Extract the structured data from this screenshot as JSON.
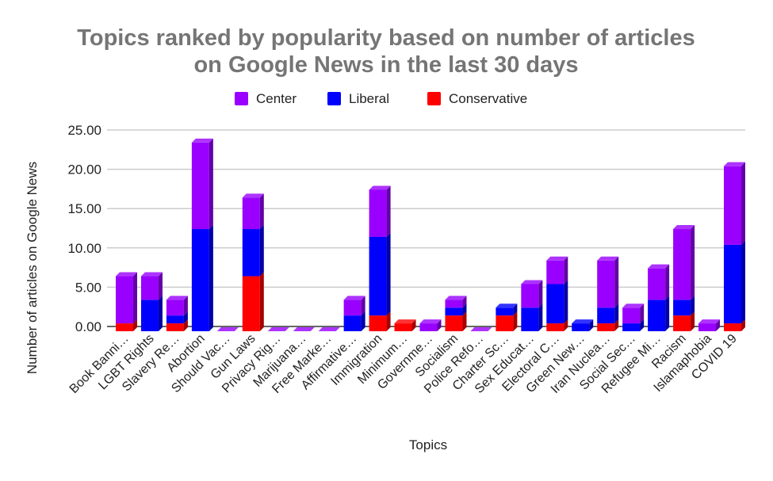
{
  "chart_data": {
    "type": "bar",
    "stacked": true,
    "style": "3d",
    "title": "Topics ranked by popularity based on number of articles on Google News in the last 30 days",
    "title_lines": [
      "Topics ranked by popularity based on number of articles",
      "on Google News in the last 30 days"
    ],
    "xlabel": "Topics",
    "ylabel": "Number of articles on Google News",
    "ylim": [
      0,
      25
    ],
    "yticks": [
      "0.00",
      "5.00",
      "10.00",
      "15.00",
      "20.00",
      "25.00"
    ],
    "grid": true,
    "legend_position": "top",
    "categories": [
      "Book Banni…",
      "LGBT Rights",
      "Slavery Re…",
      "Abortion",
      "Should Vac…",
      "Gun Laws",
      "Privacy Rig…",
      "Marijuana…",
      "Free Marke…",
      "Affirmative…",
      "Immigration",
      "Minimum…",
      "Governme…",
      "Socialism",
      "Police Refo…",
      "Charter Sc…",
      "Sex Educat…",
      "Electoral C…",
      "Green New…",
      "Iran Nuclea…",
      "Social Sec…",
      "Refugee Mi…",
      "Racism",
      "Islamaphobia",
      "COVID 19"
    ],
    "series": [
      {
        "name": "Conservative",
        "color": "#ff0000",
        "values": [
          1,
          0,
          1,
          0,
          0,
          7,
          0,
          0,
          0,
          0,
          2,
          1,
          0,
          2,
          0,
          2,
          0,
          1,
          0,
          1,
          0,
          0,
          2,
          0,
          1
        ]
      },
      {
        "name": "Liberal",
        "color": "#0000ff",
        "values": [
          0,
          4,
          1,
          13,
          0,
          6,
          0,
          0,
          0,
          2,
          10,
          0,
          0,
          1,
          0,
          1,
          3,
          5,
          1,
          2,
          1,
          4,
          2,
          0,
          10
        ]
      },
      {
        "name": "Center",
        "color": "#9900ff",
        "values": [
          6,
          3,
          2,
          11,
          0,
          4,
          0,
          0,
          0,
          2,
          6,
          0,
          1,
          1,
          0,
          0,
          3,
          3,
          0,
          6,
          2,
          4,
          9,
          1,
          10
        ]
      }
    ],
    "legend_order": [
      "Center",
      "Liberal",
      "Conservative"
    ]
  }
}
